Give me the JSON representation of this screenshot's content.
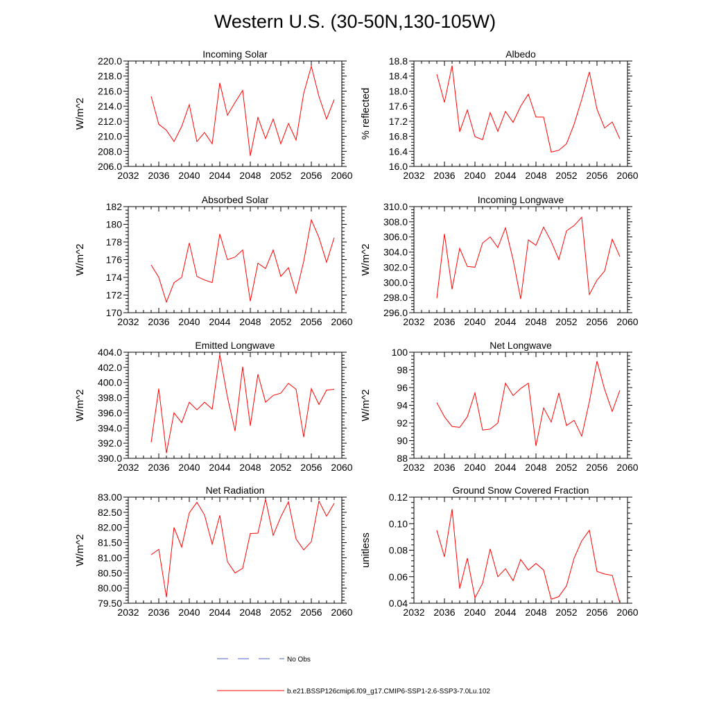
{
  "figure": {
    "title": "Western U.S. (30-50N,130-105W)",
    "legend": [
      {
        "label": "No Obs",
        "color": "#4b5fc9",
        "style": "dashed"
      },
      {
        "label": "b.e21.BSSP126cmip6.f09_g17.CMIP6-SSP1-2.6-SSP3-7.0Lu.102",
        "color": "#ff0000",
        "style": "solid"
      }
    ]
  },
  "chart_data": [
    {
      "type": "line",
      "title": "Incoming Solar",
      "xlabel": "",
      "ylabel": "W/m^2",
      "xlim": [
        2032,
        2060
      ],
      "ylim": [
        206,
        220
      ],
      "xticks": [
        "2032",
        "2036",
        "2040",
        "2044",
        "2048",
        "2052",
        "2056",
        "2060"
      ],
      "yticks": [
        "206.0",
        "208.0",
        "210.0",
        "212.0",
        "214.0",
        "216.0",
        "218.0",
        "220.0"
      ],
      "color": "#ff0000",
      "x": [
        2035,
        2036,
        2037,
        2038,
        2039,
        2040,
        2041,
        2042,
        2043,
        2044,
        2045,
        2046,
        2047,
        2048,
        2049,
        2050,
        2051,
        2052,
        2053,
        2054,
        2055,
        2056,
        2057,
        2058,
        2059
      ],
      "values": [
        215.3,
        211.6,
        210.8,
        209.3,
        211.3,
        214.2,
        209.3,
        210.5,
        209.0,
        217.1,
        212.8,
        214.5,
        216.1,
        207.4,
        212.5,
        209.7,
        212.3,
        209.0,
        211.7,
        209.5,
        215.7,
        219.3,
        215.3,
        212.3,
        214.9
      ]
    },
    {
      "type": "line",
      "title": "Albedo",
      "xlabel": "",
      "ylabel": "% reflected",
      "xlim": [
        2032,
        2060
      ],
      "ylim": [
        16.0,
        18.8
      ],
      "xticks": [
        "2032",
        "2036",
        "2040",
        "2044",
        "2048",
        "2052",
        "2056",
        "2060"
      ],
      "yticks": [
        "16.0",
        "16.4",
        "16.8",
        "17.2",
        "17.6",
        "18.0",
        "18.4",
        "18.8"
      ],
      "color": "#ff0000",
      "x": [
        2035,
        2036,
        2037,
        2038,
        2039,
        2040,
        2041,
        2042,
        2043,
        2044,
        2045,
        2046,
        2047,
        2048,
        2049,
        2050,
        2051,
        2052,
        2053,
        2054,
        2055,
        2056,
        2057,
        2058,
        2059
      ],
      "values": [
        18.45,
        17.7,
        18.68,
        16.92,
        17.5,
        16.79,
        16.71,
        17.43,
        16.93,
        17.46,
        17.17,
        17.6,
        17.92,
        17.31,
        17.31,
        16.38,
        16.43,
        16.6,
        17.12,
        17.78,
        18.51,
        17.52,
        17.02,
        17.18,
        16.73
      ]
    },
    {
      "type": "line",
      "title": "Absorbed Solar",
      "xlabel": "",
      "ylabel": "W/m^2",
      "xlim": [
        2032,
        2060
      ],
      "ylim": [
        170,
        182
      ],
      "xticks": [
        "2032",
        "2036",
        "2040",
        "2044",
        "2048",
        "2052",
        "2056",
        "2060"
      ],
      "yticks": [
        "170",
        "172",
        "174",
        "176",
        "178",
        "180",
        "182"
      ],
      "color": "#ff0000",
      "x": [
        2035,
        2036,
        2037,
        2038,
        2039,
        2040,
        2041,
        2042,
        2043,
        2044,
        2045,
        2046,
        2047,
        2048,
        2049,
        2050,
        2051,
        2052,
        2053,
        2054,
        2055,
        2056,
        2057,
        2058,
        2059
      ],
      "values": [
        175.4,
        174.0,
        171.2,
        173.4,
        174.0,
        177.9,
        174.1,
        173.7,
        173.4,
        178.9,
        176.0,
        176.3,
        177.1,
        171.3,
        175.6,
        175.0,
        177.1,
        174.1,
        175.1,
        172.2,
        175.8,
        180.5,
        178.5,
        175.7,
        178.5
      ]
    },
    {
      "type": "line",
      "title": "Incoming Longwave",
      "xlabel": "",
      "ylabel": "W/m^2",
      "xlim": [
        2032,
        2060
      ],
      "ylim": [
        296,
        310
      ],
      "xticks": [
        "2032",
        "2036",
        "2040",
        "2044",
        "2048",
        "2052",
        "2056",
        "2060"
      ],
      "yticks": [
        "296.0",
        "298.0",
        "300.0",
        "302.0",
        "304.0",
        "306.0",
        "308.0",
        "310.0"
      ],
      "color": "#ff0000",
      "x": [
        2035,
        2036,
        2037,
        2038,
        2039,
        2040,
        2041,
        2042,
        2043,
        2044,
        2045,
        2046,
        2047,
        2048,
        2049,
        2050,
        2051,
        2052,
        2053,
        2054,
        2055,
        2056,
        2057,
        2058,
        2059
      ],
      "values": [
        297.9,
        306.4,
        299.1,
        304.5,
        302.1,
        302.0,
        305.2,
        306.0,
        304.6,
        307.2,
        303.0,
        297.8,
        305.6,
        304.9,
        307.3,
        305.4,
        303.0,
        306.8,
        307.5,
        308.6,
        298.4,
        300.3,
        301.5,
        305.7,
        303.4
      ]
    },
    {
      "type": "line",
      "title": "Emitted Longwave",
      "xlabel": "",
      "ylabel": "W/m^2",
      "xlim": [
        2032,
        2060
      ],
      "ylim": [
        390,
        404
      ],
      "xticks": [
        "2032",
        "2036",
        "2040",
        "2044",
        "2048",
        "2052",
        "2056",
        "2060"
      ],
      "yticks": [
        "390.0",
        "392.0",
        "394.0",
        "396.0",
        "398.0",
        "400.0",
        "402.0",
        "404.0"
      ],
      "color": "#ff0000",
      "x": [
        2035,
        2036,
        2037,
        2038,
        2039,
        2040,
        2041,
        2042,
        2043,
        2044,
        2045,
        2046,
        2047,
        2048,
        2049,
        2050,
        2051,
        2052,
        2053,
        2054,
        2055,
        2056,
        2057,
        2058,
        2059
      ],
      "values": [
        392.1,
        399.2,
        390.7,
        396.0,
        394.7,
        397.4,
        396.4,
        397.4,
        396.5,
        403.7,
        398.1,
        393.6,
        402.1,
        394.3,
        401.1,
        397.4,
        398.3,
        398.6,
        399.9,
        399.1,
        392.8,
        399.2,
        397.1,
        399.0,
        399.1
      ]
    },
    {
      "type": "line",
      "title": "Net Longwave",
      "xlabel": "",
      "ylabel": "W/m^2",
      "xlim": [
        2032,
        2060
      ],
      "ylim": [
        88,
        100
      ],
      "xticks": [
        "2032",
        "2036",
        "2040",
        "2044",
        "2048",
        "2052",
        "2056",
        "2060"
      ],
      "yticks": [
        "88",
        "90",
        "92",
        "94",
        "96",
        "98",
        "100"
      ],
      "color": "#ff0000",
      "x": [
        2035,
        2036,
        2037,
        2038,
        2039,
        2040,
        2041,
        2042,
        2043,
        2044,
        2045,
        2046,
        2047,
        2048,
        2049,
        2050,
        2051,
        2052,
        2053,
        2054,
        2055,
        2056,
        2057,
        2058,
        2059
      ],
      "values": [
        94.3,
        92.7,
        91.6,
        91.5,
        92.7,
        95.4,
        91.2,
        91.3,
        92.0,
        96.5,
        95.1,
        95.9,
        96.5,
        89.4,
        93.7,
        92.1,
        95.4,
        91.7,
        92.3,
        90.5,
        94.4,
        99.0,
        95.8,
        93.3,
        95.7
      ]
    },
    {
      "type": "line",
      "title": "Net Radiation",
      "xlabel": "",
      "ylabel": "W/m^2",
      "xlim": [
        2032,
        2060
      ],
      "ylim": [
        79.5,
        83.0
      ],
      "xticks": [
        "2032",
        "2036",
        "2040",
        "2044",
        "2048",
        "2052",
        "2056",
        "2060"
      ],
      "yticks": [
        "79.50",
        "80.00",
        "80.50",
        "81.00",
        "81.50",
        "82.00",
        "82.50",
        "83.00"
      ],
      "color": "#ff0000",
      "x": [
        2035,
        2036,
        2037,
        2038,
        2039,
        2040,
        2041,
        2042,
        2043,
        2044,
        2045,
        2046,
        2047,
        2048,
        2049,
        2050,
        2051,
        2052,
        2053,
        2054,
        2055,
        2056,
        2057,
        2058,
        2059
      ],
      "values": [
        81.1,
        81.28,
        79.7,
        82.0,
        81.35,
        82.48,
        82.83,
        82.41,
        81.45,
        82.4,
        80.87,
        80.5,
        80.65,
        81.8,
        81.81,
        82.93,
        81.74,
        82.35,
        82.85,
        81.62,
        81.26,
        81.53,
        82.87,
        82.37,
        82.8
      ]
    },
    {
      "type": "line",
      "title": "Ground Snow Covered Fraction",
      "xlabel": "",
      "ylabel": "unitless",
      "xlim": [
        2032,
        2060
      ],
      "ylim": [
        0.04,
        0.12
      ],
      "xticks": [
        "2032",
        "2036",
        "2040",
        "2044",
        "2048",
        "2052",
        "2056",
        "2060"
      ],
      "yticks": [
        "0.04",
        "0.06",
        "0.08",
        "0.10",
        "0.12"
      ],
      "color": "#ff0000",
      "x": [
        2035,
        2036,
        2037,
        2038,
        2039,
        2040,
        2041,
        2042,
        2043,
        2044,
        2045,
        2046,
        2047,
        2048,
        2049,
        2050,
        2051,
        2052,
        2053,
        2054,
        2055,
        2056,
        2057,
        2058,
        2059
      ],
      "values": [
        0.095,
        0.075,
        0.111,
        0.051,
        0.074,
        0.044,
        0.055,
        0.081,
        0.06,
        0.066,
        0.057,
        0.073,
        0.065,
        0.07,
        0.065,
        0.043,
        0.045,
        0.053,
        0.074,
        0.087,
        0.095,
        0.064,
        0.062,
        0.061,
        0.04
      ]
    }
  ]
}
